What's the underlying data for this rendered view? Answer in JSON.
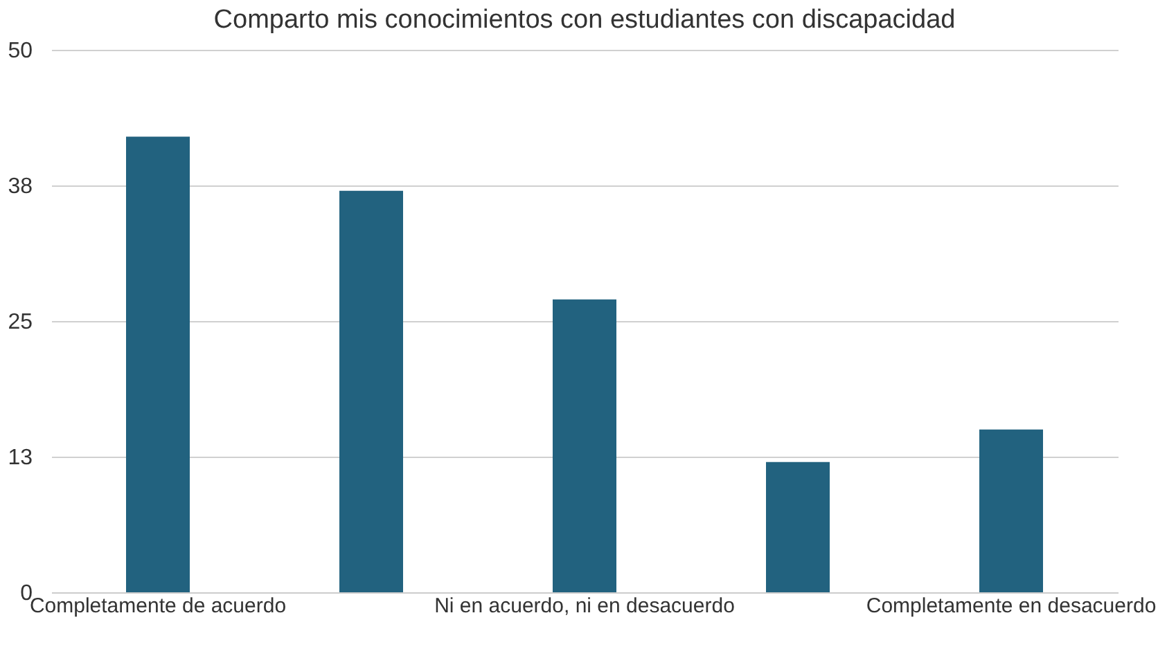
{
  "chart_data": {
    "type": "bar",
    "title": "Comparto mis conocimientos con estudiantes con discapacidad",
    "categories": [
      "Completamente de acuerdo",
      null,
      "Ni en acuerdo, ni en desacuerdo",
      null,
      "Completamente en desacuerdo"
    ],
    "values": [
      42,
      37,
      27,
      12,
      15
    ],
    "color": "#22627f",
    "ylim": [
      0,
      50
    ],
    "yticks": [
      0,
      {
        "value": 12.5,
        "label": "13"
      },
      25,
      {
        "value": 37.5,
        "label": "38"
      },
      50
    ],
    "grid": "y"
  }
}
